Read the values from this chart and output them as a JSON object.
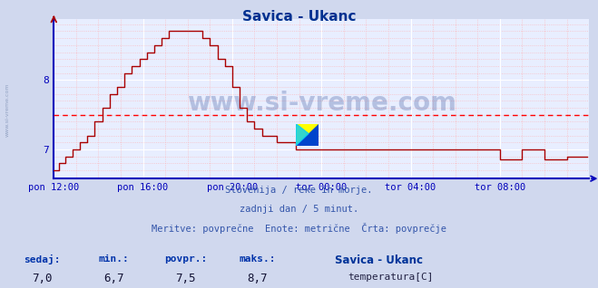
{
  "title": "Savica - Ukanc",
  "title_color": "#003090",
  "bg_color": "#d0d8ee",
  "plot_bg_color": "#e8eeff",
  "grid_color_major": "#ffffff",
  "grid_color_minor": "#ffaaaa",
  "line_color": "#aa0000",
  "avg_line_color": "#ff0000",
  "avg_value": 7.5,
  "x_axis_color": "#0000bb",
  "y_axis_color": "#0000bb",
  "x_tick_labels": [
    "pon 12:00",
    "pon 16:00",
    "pon 20:00",
    "tor 00:00",
    "tor 04:00",
    "tor 08:00"
  ],
  "x_tick_positions": [
    0,
    48,
    96,
    144,
    192,
    240
  ],
  "y_ticks": [
    7.0,
    8.0
  ],
  "ylim": [
    6.58,
    8.88
  ],
  "xlim": [
    0,
    288
  ],
  "subtitle1": "Slovenija / reke in morje.",
  "subtitle2": "zadnji dan / 5 minut.",
  "subtitle3": "Meritve: povprečne  Enote: metrične  Črta: povprečje",
  "footer_labels": [
    "sedaj:",
    "min.:",
    "povpr.:",
    "maks.:"
  ],
  "footer_values": [
    "7,0",
    "6,7",
    "7,5",
    "8,7"
  ],
  "legend_label": "Savica - Ukanc",
  "legend_sublabel": "temperatura[C]",
  "legend_color": "#cc0000",
  "watermark_text": "www.si-vreme.com",
  "left_watermark": "www.si-vreme.com"
}
